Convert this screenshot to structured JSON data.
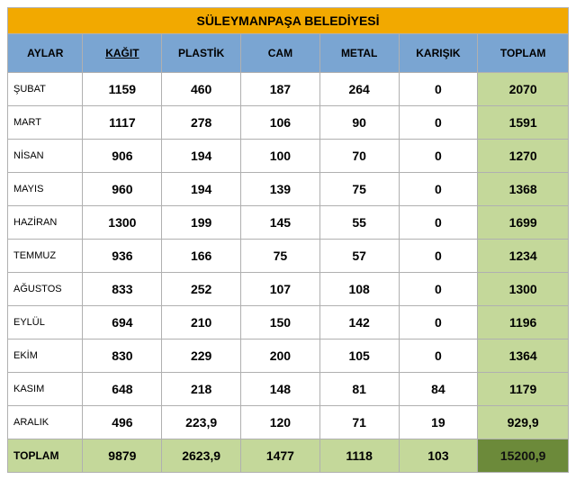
{
  "title": "SÜLEYMANPAŞA BELEDİYESİ",
  "colors": {
    "title_bg": "#f2a900",
    "header_bg": "#7aa5d2",
    "row_toplam_bg": "#c4d89a",
    "totals_row_bg": "#c4d89a",
    "grand_total_bg": "#6c8a3a",
    "border": "#b0b0b0",
    "text": "#111111"
  },
  "columns": [
    {
      "key": "month",
      "label": "AYLAR",
      "underline": false
    },
    {
      "key": "kagit",
      "label": "KAĞIT",
      "underline": true
    },
    {
      "key": "plastik",
      "label": "PLASTİK",
      "underline": false
    },
    {
      "key": "cam",
      "label": "CAM",
      "underline": false
    },
    {
      "key": "metal",
      "label": "METAL",
      "underline": false
    },
    {
      "key": "karisik",
      "label": "KARIŞIK",
      "underline": false
    },
    {
      "key": "toplam",
      "label": "TOPLAM",
      "underline": false
    }
  ],
  "rows": [
    {
      "month": "ŞUBAT",
      "kagit": "1159",
      "plastik": "460",
      "cam": "187",
      "metal": "264",
      "karisik": "0",
      "toplam": "2070"
    },
    {
      "month": "MART",
      "kagit": "1117",
      "plastik": "278",
      "cam": "106",
      "metal": "90",
      "karisik": "0",
      "toplam": "1591"
    },
    {
      "month": "NİSAN",
      "kagit": "906",
      "plastik": "194",
      "cam": "100",
      "metal": "70",
      "karisik": "0",
      "toplam": "1270"
    },
    {
      "month": "MAYIS",
      "kagit": "960",
      "plastik": "194",
      "cam": "139",
      "metal": "75",
      "karisik": "0",
      "toplam": "1368"
    },
    {
      "month": "HAZİRAN",
      "kagit": "1300",
      "plastik": "199",
      "cam": "145",
      "metal": "55",
      "karisik": "0",
      "toplam": "1699"
    },
    {
      "month": "TEMMUZ",
      "kagit": "936",
      "plastik": "166",
      "cam": "75",
      "metal": "57",
      "karisik": "0",
      "toplam": "1234"
    },
    {
      "month": "AĞUSTOS",
      "kagit": "833",
      "plastik": "252",
      "cam": "107",
      "metal": "108",
      "karisik": "0",
      "toplam": "1300"
    },
    {
      "month": "EYLÜL",
      "kagit": "694",
      "plastik": "210",
      "cam": "150",
      "metal": "142",
      "karisik": "0",
      "toplam": "1196"
    },
    {
      "month": "EKİM",
      "kagit": "830",
      "plastik": "229",
      "cam": "200",
      "metal": "105",
      "karisik": "0",
      "toplam": "1364"
    },
    {
      "month": "KASIM",
      "kagit": "648",
      "plastik": "218",
      "cam": "148",
      "metal": "81",
      "karisik": "84",
      "toplam": "1179"
    },
    {
      "month": "ARALIK",
      "kagit": "496",
      "plastik": "223,9",
      "cam": "120",
      "metal": "71",
      "karisik": "19",
      "toplam": "929,9"
    }
  ],
  "totals": {
    "label": "TOPLAM",
    "kagit": "9879",
    "plastik": "2623,9",
    "cam": "1477",
    "metal": "1118",
    "karisik": "103",
    "toplam": "15200,9"
  }
}
